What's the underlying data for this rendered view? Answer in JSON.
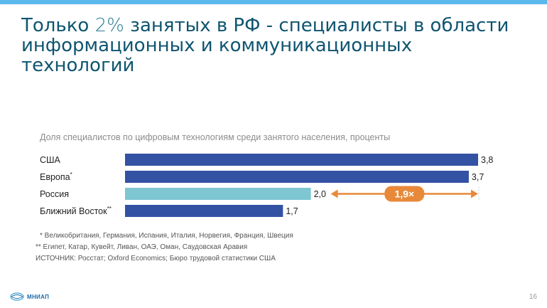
{
  "header": {
    "title_part1": "Только ",
    "title_highlight": "2%",
    "title_part2": " занятых в РФ - специалисты в области информационных и коммуникационных технологий"
  },
  "chart_data": {
    "type": "bar",
    "orientation": "horizontal",
    "title": "Доля специалистов по цифровым технологиям среди занятого населения, проценты",
    "categories": [
      "США",
      "Европа*",
      "Россия",
      "Ближний Восток**"
    ],
    "values": [
      3.8,
      3.7,
      2.0,
      1.7
    ],
    "value_labels": [
      "3,8",
      "3,7",
      "2,0",
      "1,7"
    ],
    "bar_colors": [
      "#3352a4",
      "#3352a4",
      "#7ec6d1",
      "#3352a4"
    ],
    "highlight_category": "Россия",
    "annotation": {
      "label": "1,9×",
      "color": "#e8893a",
      "from_value": 2.0,
      "to_value": 3.8
    },
    "xlim": [
      0,
      3.8
    ],
    "grid": false,
    "legend": "none"
  },
  "footnotes": {
    "note1": "* Великобритания, Германия, Испания, Италия, Норвегия, Франция, Швеция",
    "note2": "** Египет, Катар, Кувейт, Ливан, ОАЭ, Оман, Саудовская Аравия",
    "source": "ИСТОЧНИК: Росстат; Oxford Economics; Бюро трудовой статистики США"
  },
  "footer": {
    "logo_text": "МНИАП",
    "page_number": "16"
  }
}
